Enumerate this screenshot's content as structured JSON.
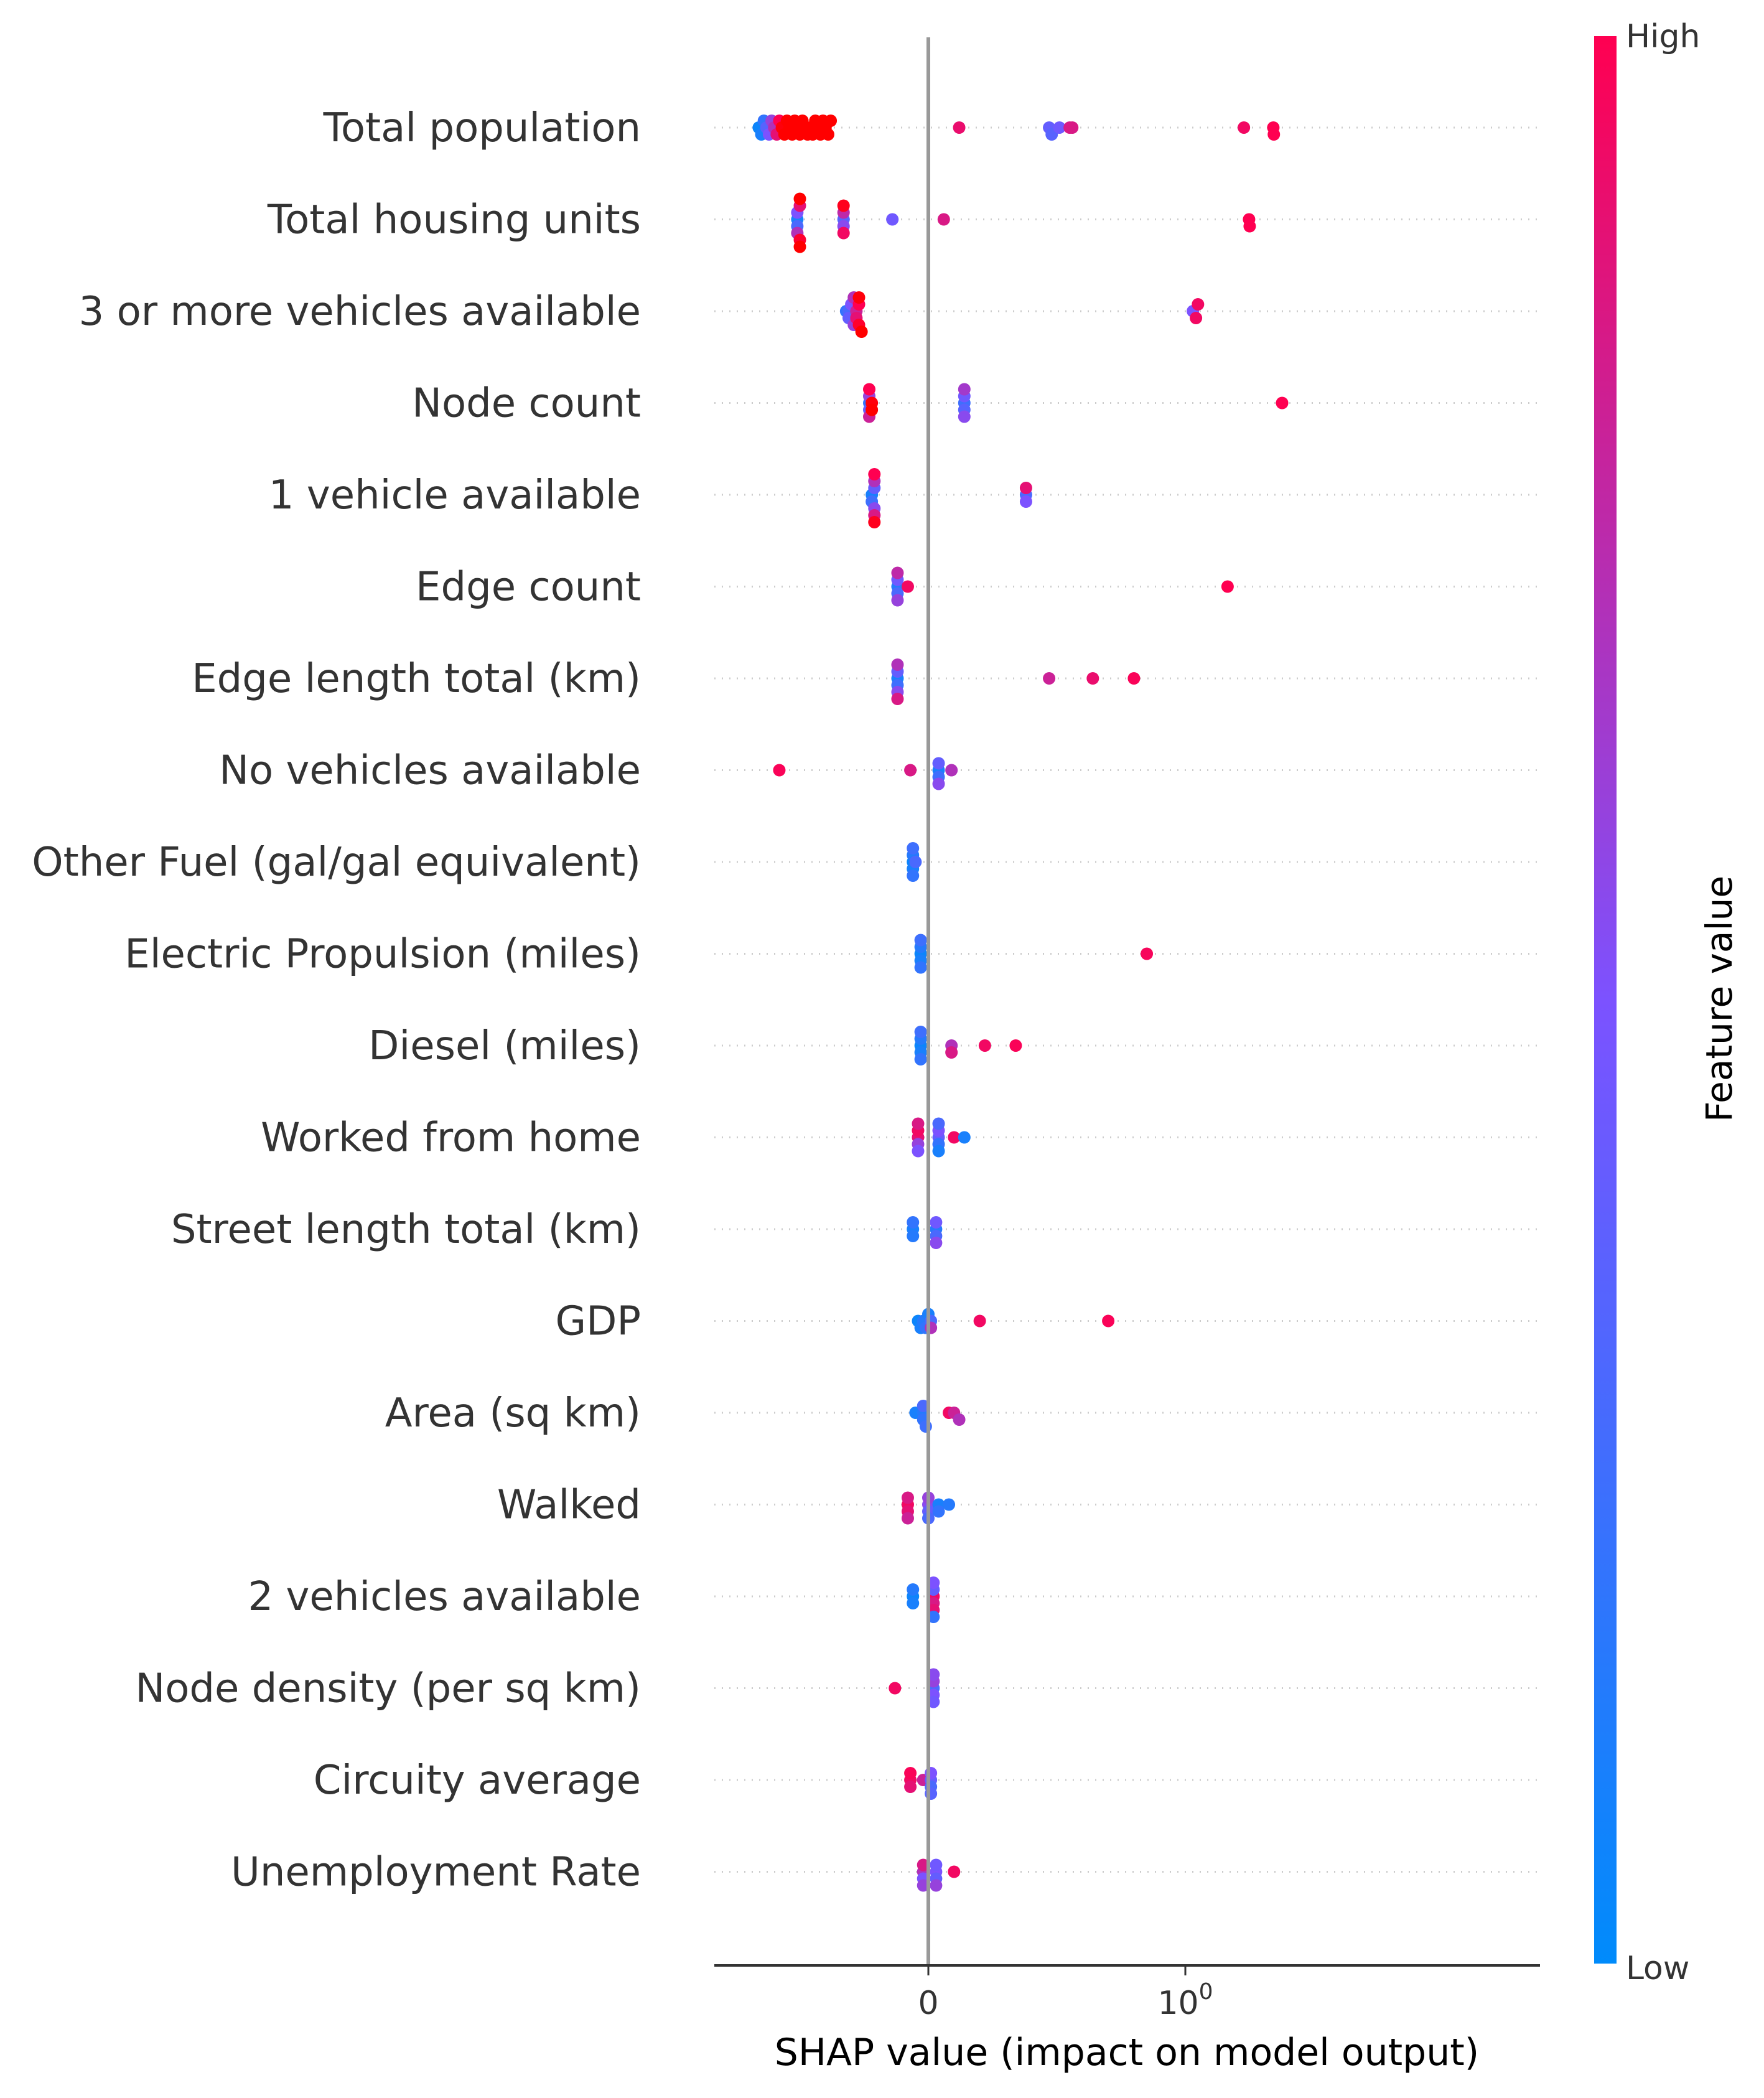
{
  "colors": {
    "low": "#008bfb",
    "mid": "#7c52ff",
    "high": "#ff0051",
    "text": "#333333",
    "zero_line": "#999999"
  },
  "chart_data": {
    "type": "scatter",
    "title": "",
    "xlabel": "SHAP value (impact on model output)",
    "ylabel": "",
    "x_scale": "symlog",
    "x_ticks": [
      {
        "value": 0,
        "label": "0"
      },
      {
        "value": 1,
        "label": "10",
        "sup": "0"
      }
    ],
    "xlim": [
      -0.85,
      2.4
    ],
    "grid": false,
    "colorbar": {
      "title": "Feature value",
      "high_label": "High",
      "low_label": "Low"
    },
    "features": [
      {
        "name": "Total population",
        "points": [
          [
            -0.66,
            0.05
          ],
          [
            -0.65,
            0.1
          ],
          [
            -0.64,
            0.2
          ],
          [
            -0.63,
            0.35
          ],
          [
            -0.62,
            0.5
          ],
          [
            -0.61,
            0.6
          ],
          [
            -0.6,
            0.7
          ],
          [
            -0.59,
            0.9
          ],
          [
            -0.58,
            1.0
          ],
          [
            -0.57,
            1.2
          ],
          [
            -0.56,
            1.3
          ],
          [
            -0.55,
            1.5
          ],
          [
            -0.54,
            1.8
          ],
          [
            -0.53,
            2.0
          ],
          [
            -0.52,
            2.2
          ],
          [
            -0.51,
            2.4
          ],
          [
            -0.5,
            2.6
          ],
          [
            -0.49,
            2.8
          ],
          [
            -0.48,
            3.0
          ],
          [
            -0.47,
            3.2
          ],
          [
            -0.46,
            3.4
          ],
          [
            -0.45,
            3.6
          ],
          [
            -0.44,
            3.8
          ],
          [
            -0.43,
            4.0
          ],
          [
            -0.42,
            4.2
          ],
          [
            -0.41,
            4.4
          ],
          [
            -0.4,
            4.6
          ],
          [
            -0.39,
            4.8
          ],
          [
            -0.38,
            5.0
          ],
          [
            0.12,
            0.92
          ],
          [
            0.47,
            0.4
          ],
          [
            0.48,
            0.35
          ],
          [
            0.51,
            0.45
          ],
          [
            0.55,
            0.85
          ],
          [
            0.56,
            0.85
          ],
          [
            1.69,
            0.95
          ],
          [
            2.2,
            1.0
          ],
          [
            2.21,
            1.0
          ]
        ]
      },
      {
        "name": "Total housing units",
        "points": [
          [
            -0.51,
            0.1
          ],
          [
            -0.51,
            0.3
          ],
          [
            -0.51,
            0.5
          ],
          [
            -0.51,
            0.7
          ],
          [
            -0.5,
            0.9
          ],
          [
            -0.5,
            1.1
          ],
          [
            -0.5,
            1.3
          ],
          [
            -0.5,
            1.5
          ],
          [
            -0.33,
            0.35
          ],
          [
            -0.33,
            0.55
          ],
          [
            -0.33,
            0.75
          ],
          [
            -0.33,
            0.95
          ],
          [
            -0.33,
            1.15
          ],
          [
            -0.14,
            0.45
          ],
          [
            0.06,
            0.85
          ],
          [
            1.77,
            1.0
          ],
          [
            1.78,
            1.0
          ]
        ]
      },
      {
        "name": "3 or more vehicles available",
        "points": [
          [
            -0.32,
            0.2
          ],
          [
            -0.31,
            0.3
          ],
          [
            -0.31,
            0.4
          ],
          [
            -0.3,
            0.5
          ],
          [
            -0.29,
            0.6
          ],
          [
            -0.29,
            0.7
          ],
          [
            -0.28,
            0.8
          ],
          [
            -0.28,
            0.9
          ],
          [
            -0.27,
            1.0
          ],
          [
            -0.27,
            1.1
          ],
          [
            -0.27,
            1.2
          ],
          [
            -0.26,
            1.3
          ],
          [
            1.07,
            0.5
          ],
          [
            1.1,
            0.95
          ],
          [
            1.12,
            0.95
          ]
        ]
      },
      {
        "name": "Node count",
        "points": [
          [
            -0.23,
            0.2
          ],
          [
            -0.23,
            0.4
          ],
          [
            -0.23,
            0.6
          ],
          [
            -0.23,
            0.8
          ],
          [
            -0.23,
            1.0
          ],
          [
            -0.22,
            1.2
          ],
          [
            -0.22,
            1.4
          ],
          [
            0.14,
            0.25
          ],
          [
            0.14,
            0.35
          ],
          [
            0.14,
            0.45
          ],
          [
            0.14,
            0.55
          ],
          [
            0.14,
            0.65
          ],
          [
            2.38,
            1.0
          ]
        ]
      },
      {
        "name": "1 vehicle available",
        "points": [
          [
            -0.22,
            0.1
          ],
          [
            -0.22,
            0.25
          ],
          [
            -0.21,
            0.4
          ],
          [
            -0.21,
            0.55
          ],
          [
            -0.21,
            0.7
          ],
          [
            -0.21,
            0.85
          ],
          [
            -0.21,
            1.0
          ],
          [
            -0.21,
            1.15
          ],
          [
            0.38,
            0.3
          ],
          [
            0.38,
            0.5
          ],
          [
            0.38,
            0.9
          ]
        ]
      },
      {
        "name": "Edge count",
        "points": [
          [
            -0.12,
            0.15
          ],
          [
            -0.12,
            0.3
          ],
          [
            -0.12,
            0.45
          ],
          [
            -0.12,
            0.6
          ],
          [
            -0.12,
            0.75
          ],
          [
            -0.08,
            0.95
          ],
          [
            1.46,
            1.0
          ]
        ]
      },
      {
        "name": "Edge length total (km)",
        "points": [
          [
            -0.12,
            0.1
          ],
          [
            -0.12,
            0.25
          ],
          [
            -0.12,
            0.4
          ],
          [
            -0.12,
            0.55
          ],
          [
            -0.12,
            0.7
          ],
          [
            -0.12,
            0.85
          ],
          [
            0.47,
            0.8
          ],
          [
            0.64,
            0.92
          ],
          [
            0.8,
            0.98
          ]
        ]
      },
      {
        "name": "No vehicles available",
        "points": [
          [
            -0.58,
            0.98
          ],
          [
            -0.07,
            0.85
          ],
          [
            0.04,
            0.1
          ],
          [
            0.04,
            0.25
          ],
          [
            0.04,
            0.4
          ],
          [
            0.04,
            0.55
          ],
          [
            0.09,
            0.7
          ]
        ]
      },
      {
        "name": "Other Fuel (gal/gal equivalent)",
        "points": [
          [
            -0.06,
            0.05
          ],
          [
            -0.06,
            0.1
          ],
          [
            -0.06,
            0.15
          ],
          [
            -0.06,
            0.2
          ],
          [
            -0.06,
            0.25
          ],
          [
            -0.05,
            0.3
          ]
        ]
      },
      {
        "name": "Electric Propulsion (miles)",
        "points": [
          [
            -0.03,
            0.05
          ],
          [
            -0.03,
            0.1
          ],
          [
            -0.03,
            0.15
          ],
          [
            -0.03,
            0.2
          ],
          [
            -0.03,
            0.25
          ],
          [
            0.85,
            0.97
          ]
        ]
      },
      {
        "name": "Diesel (miles)",
        "points": [
          [
            -0.03,
            0.05
          ],
          [
            -0.03,
            0.1
          ],
          [
            -0.03,
            0.15
          ],
          [
            -0.03,
            0.2
          ],
          [
            -0.03,
            0.25
          ],
          [
            0.09,
            0.7
          ],
          [
            0.09,
            0.85
          ],
          [
            0.22,
            0.95
          ],
          [
            0.34,
            0.98
          ]
        ]
      },
      {
        "name": "Worked from home",
        "points": [
          [
            -0.04,
            0.9
          ],
          [
            -0.04,
            0.6
          ],
          [
            -0.04,
            0.95
          ],
          [
            -0.04,
            0.5
          ],
          [
            -0.04,
            0.85
          ],
          [
            0.04,
            0.4
          ],
          [
            0.04,
            0.2
          ],
          [
            0.04,
            0.5
          ],
          [
            0.04,
            0.1
          ],
          [
            0.04,
            0.3
          ],
          [
            0.1,
            0.95
          ],
          [
            0.14,
            0.1
          ]
        ]
      },
      {
        "name": "Street length total (km)",
        "points": [
          [
            -0.06,
            0.1
          ],
          [
            -0.06,
            0.15
          ],
          [
            -0.06,
            0.2
          ],
          [
            0.03,
            0.15
          ],
          [
            0.03,
            0.3
          ],
          [
            0.03,
            0.45
          ],
          [
            0.03,
            0.55
          ]
        ]
      },
      {
        "name": "GDP",
        "points": [
          [
            -0.04,
            0.05
          ],
          [
            -0.03,
            0.1
          ],
          [
            -0.02,
            0.15
          ],
          [
            -0.01,
            0.2
          ],
          [
            0.0,
            0.1
          ],
          [
            0.01,
            0.3
          ],
          [
            0.01,
            0.7
          ],
          [
            0.2,
            0.95
          ],
          [
            0.7,
            0.98
          ]
        ]
      },
      {
        "name": "Area (sq km)",
        "points": [
          [
            -0.05,
            0.1
          ],
          [
            -0.02,
            0.15
          ],
          [
            -0.02,
            0.2
          ],
          [
            -0.02,
            0.3
          ],
          [
            -0.01,
            0.25
          ],
          [
            0.08,
            0.95
          ],
          [
            0.1,
            0.8
          ],
          [
            0.12,
            0.7
          ]
        ]
      },
      {
        "name": "Walked",
        "points": [
          [
            -0.08,
            0.95
          ],
          [
            -0.08,
            0.9
          ],
          [
            -0.08,
            0.85
          ],
          [
            -0.08,
            0.8
          ],
          [
            0.0,
            0.55
          ],
          [
            0.0,
            0.4
          ],
          [
            0.0,
            0.6
          ],
          [
            0.0,
            0.3
          ],
          [
            0.04,
            0.1
          ],
          [
            0.04,
            0.2
          ],
          [
            0.08,
            0.15
          ]
        ]
      },
      {
        "name": "2 vehicles available",
        "points": [
          [
            -0.06,
            0.05
          ],
          [
            -0.06,
            0.1
          ],
          [
            -0.06,
            0.15
          ],
          [
            0.02,
            0.95
          ],
          [
            0.02,
            0.85
          ],
          [
            0.02,
            0.4
          ],
          [
            0.02,
            0.9
          ],
          [
            0.02,
            0.5
          ],
          [
            0.02,
            0.2
          ]
        ]
      },
      {
        "name": "Node density (per sq km)",
        "points": [
          [
            -0.13,
            0.95
          ],
          [
            0.02,
            0.3
          ],
          [
            0.02,
            0.5
          ],
          [
            0.02,
            0.6
          ],
          [
            0.02,
            0.45
          ],
          [
            0.02,
            0.55
          ]
        ]
      },
      {
        "name": "Circuity average",
        "points": [
          [
            -0.07,
            0.95
          ],
          [
            -0.07,
            0.9
          ],
          [
            -0.07,
            0.98
          ],
          [
            -0.02,
            0.8
          ],
          [
            0.01,
            0.4
          ],
          [
            0.01,
            0.3
          ],
          [
            0.01,
            0.5
          ],
          [
            0.01,
            0.35
          ]
        ]
      },
      {
        "name": "Unemployment Rate",
        "points": [
          [
            -0.02,
            0.7
          ],
          [
            -0.02,
            0.5
          ],
          [
            -0.02,
            0.85
          ],
          [
            -0.02,
            0.6
          ],
          [
            0.03,
            0.5
          ],
          [
            0.03,
            0.4
          ],
          [
            0.03,
            0.45
          ],
          [
            0.03,
            0.6
          ],
          [
            0.1,
            0.95
          ]
        ]
      }
    ]
  }
}
